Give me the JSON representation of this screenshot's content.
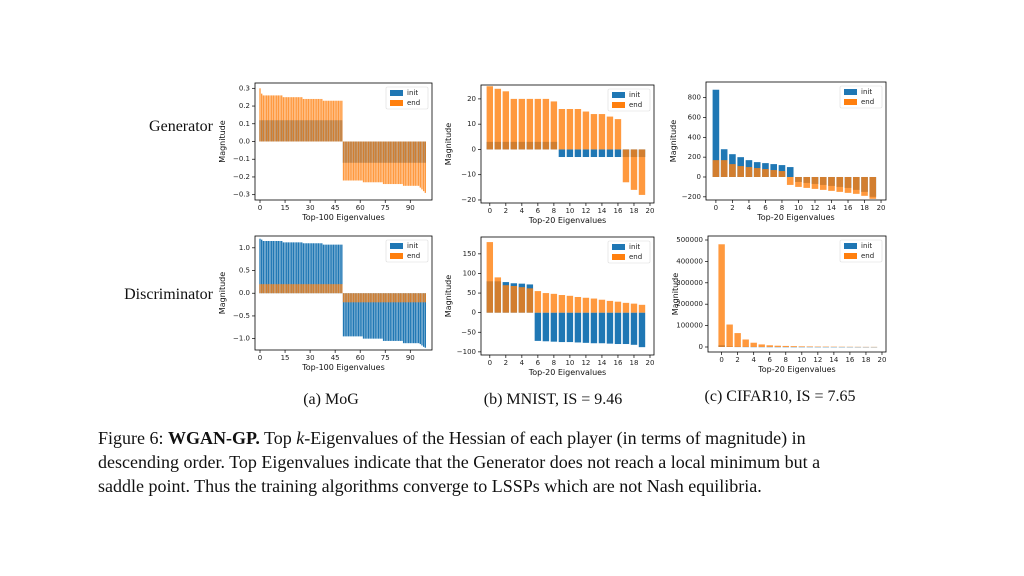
{
  "rows": [
    "Generator",
    "Discriminator"
  ],
  "subcaptions": [
    "(a) MoG",
    "(b) MNIST, IS = 9.46",
    "(c) CIFAR10, IS = 7.65"
  ],
  "caption": [
    [
      {
        "text": "Figure 6: "
      },
      {
        "text": "WGAN-GP.",
        "style": "bold"
      },
      {
        "text": " Top "
      },
      {
        "text": "k",
        "style": "italic"
      },
      {
        "text": "-Eigenvalues of the Hessian of each player (in terms of magnitude) in"
      }
    ],
    [
      {
        "text": "descending order. Top Eigenvalues indicate that the Generator does not reach a local minimum but a"
      }
    ],
    [
      {
        "text": "saddle point. Thus the training algorithms converge to LSSPs which are not Nash equilibria."
      }
    ]
  ],
  "chart_data": [
    {
      "type": "bar",
      "xlabel": "Top-100 Eigenvalues",
      "ylabel": "Magnitude",
      "legend": "upper right",
      "x": [
        0,
        1,
        2,
        3,
        4,
        5,
        6,
        7,
        8,
        9,
        10,
        11,
        12,
        13,
        14,
        15,
        16,
        17,
        18,
        19,
        20,
        21,
        22,
        23,
        24,
        25,
        26,
        27,
        28,
        29,
        30,
        31,
        32,
        33,
        34,
        35,
        36,
        37,
        38,
        39,
        40,
        41,
        42,
        43,
        44,
        45,
        46,
        47,
        48,
        49,
        50,
        51,
        52,
        53,
        54,
        55,
        56,
        57,
        58,
        59,
        60,
        61,
        62,
        63,
        64,
        65,
        66,
        67,
        68,
        69,
        70,
        71,
        72,
        73,
        74,
        75,
        76,
        77,
        78,
        79,
        80,
        81,
        82,
        83,
        84,
        85,
        86,
        87,
        88,
        89,
        90,
        91,
        92,
        93,
        94,
        95,
        96,
        97,
        98,
        99
      ],
      "series": [
        {
          "name": "init",
          "color": "#1f77b4",
          "values": [
            0.12,
            0.12,
            0.12,
            0.12,
            0.12,
            0.12,
            0.12,
            0.12,
            0.12,
            0.12,
            0.12,
            0.12,
            0.12,
            0.12,
            0.12,
            0.12,
            0.12,
            0.12,
            0.12,
            0.12,
            0.12,
            0.12,
            0.12,
            0.12,
            0.12,
            0.12,
            0.12,
            0.12,
            0.12,
            0.12,
            0.12,
            0.12,
            0.12,
            0.12,
            0.12,
            0.12,
            0.12,
            0.12,
            0.12,
            0.12,
            0.12,
            0.12,
            0.12,
            0.12,
            0.12,
            0.12,
            0.12,
            0.12,
            0.12,
            0.12,
            -0.12,
            -0.12,
            -0.12,
            -0.12,
            -0.12,
            -0.12,
            -0.12,
            -0.12,
            -0.12,
            -0.12,
            -0.12,
            -0.12,
            -0.12,
            -0.12,
            -0.12,
            -0.12,
            -0.12,
            -0.12,
            -0.12,
            -0.12,
            -0.12,
            -0.12,
            -0.12,
            -0.12,
            -0.12,
            -0.12,
            -0.12,
            -0.12,
            -0.12,
            -0.12,
            -0.12,
            -0.12,
            -0.12,
            -0.12,
            -0.12,
            -0.12,
            -0.12,
            -0.12,
            -0.12,
            -0.12,
            -0.12,
            -0.12,
            -0.12,
            -0.12,
            -0.12,
            -0.12,
            -0.12,
            -0.12,
            -0.12,
            -0.12
          ]
        },
        {
          "name": "end",
          "color": "#ff7f0e",
          "values": [
            0.3,
            0.27,
            0.26,
            0.26,
            0.26,
            0.26,
            0.26,
            0.26,
            0.26,
            0.26,
            0.26,
            0.26,
            0.26,
            0.26,
            0.25,
            0.25,
            0.25,
            0.25,
            0.25,
            0.25,
            0.25,
            0.25,
            0.25,
            0.25,
            0.25,
            0.25,
            0.24,
            0.24,
            0.24,
            0.24,
            0.24,
            0.24,
            0.24,
            0.24,
            0.24,
            0.24,
            0.24,
            0.24,
            0.23,
            0.23,
            0.23,
            0.23,
            0.23,
            0.23,
            0.23,
            0.23,
            0.23,
            0.23,
            0.23,
            0.23,
            -0.22,
            -0.22,
            -0.22,
            -0.22,
            -0.22,
            -0.22,
            -0.22,
            -0.22,
            -0.22,
            -0.22,
            -0.22,
            -0.22,
            -0.23,
            -0.23,
            -0.23,
            -0.23,
            -0.23,
            -0.23,
            -0.23,
            -0.23,
            -0.23,
            -0.23,
            -0.23,
            -0.23,
            -0.24,
            -0.24,
            -0.24,
            -0.24,
            -0.24,
            -0.24,
            -0.24,
            -0.24,
            -0.24,
            -0.24,
            -0.24,
            -0.24,
            -0.25,
            -0.25,
            -0.25,
            -0.25,
            -0.25,
            -0.25,
            -0.25,
            -0.25,
            -0.25,
            -0.25,
            -0.26,
            -0.27,
            -0.28,
            -0.29
          ]
        }
      ],
      "xlim": [
        -3,
        103
      ],
      "xticks": [
        0,
        15,
        30,
        45,
        60,
        75,
        90
      ],
      "ylim": [
        -0.33,
        0.33
      ],
      "yticks": [
        {
          "value": -0.3,
          "label": "−0.3"
        },
        {
          "value": -0.2,
          "label": "−0.2"
        },
        {
          "value": -0.1,
          "label": "−0.1"
        },
        {
          "value": 0,
          "label": "0.0"
        },
        0.1,
        0.2,
        0.3
      ]
    },
    {
      "type": "bar",
      "xlabel": "Top-20 Eigenvalues",
      "ylabel": "Magnitude",
      "legend": "upper right",
      "x": [
        0,
        1,
        2,
        3,
        4,
        5,
        6,
        7,
        8,
        9,
        10,
        11,
        12,
        13,
        14,
        15,
        16,
        17,
        18,
        19
      ],
      "series": [
        {
          "name": "init",
          "color": "#1f77b4",
          "values": [
            3,
            3,
            3,
            3,
            3,
            3,
            3,
            3,
            3,
            -3,
            -3,
            -3,
            -3,
            -3,
            -3,
            -3,
            -3,
            -3,
            -3,
            -3
          ]
        },
        {
          "name": "end",
          "color": "#ff7f0e",
          "values": [
            25,
            24,
            23,
            20,
            20,
            20,
            20,
            20,
            19,
            16,
            16,
            16,
            15,
            14,
            14,
            13,
            12,
            -13,
            -16,
            -18
          ]
        }
      ],
      "xlim": [
        -1.1,
        20.5
      ],
      "xticks": [
        0,
        2,
        4,
        6,
        8,
        10,
        12,
        14,
        16,
        18,
        20
      ],
      "ylim": [
        -21.2,
        25.5
      ],
      "yticks": [
        {
          "value": -20,
          "label": "−20"
        },
        {
          "value": -10,
          "label": "−10"
        },
        0,
        10,
        20
      ]
    },
    {
      "type": "bar",
      "xlabel": "Top-20 Eigenvalues",
      "ylabel": "Magnitude",
      "legend": "upper right",
      "x": [
        0,
        1,
        2,
        3,
        4,
        5,
        6,
        7,
        8,
        9,
        10,
        11,
        12,
        13,
        14,
        15,
        16,
        17,
        18,
        19
      ],
      "series": [
        {
          "name": "init",
          "color": "#1f77b4",
          "values": [
            880,
            280,
            230,
            200,
            170,
            150,
            140,
            130,
            120,
            100,
            -50,
            -60,
            -70,
            -80,
            -90,
            -100,
            -110,
            -130,
            -150,
            -200
          ]
        },
        {
          "name": "end",
          "color": "#ff7f0e",
          "values": [
            170,
            170,
            130,
            110,
            100,
            90,
            80,
            70,
            60,
            -80,
            -100,
            -110,
            -120,
            -130,
            -140,
            -150,
            -160,
            -170,
            -190,
            -220
          ]
        }
      ],
      "xlim": [
        -1.2,
        20.6
      ],
      "xticks": [
        0,
        2,
        4,
        6,
        8,
        10,
        12,
        14,
        16,
        18,
        20
      ],
      "ylim": [
        -232,
        958
      ],
      "yticks": [
        {
          "value": -200,
          "label": "−200"
        },
        0,
        200,
        400,
        600,
        800
      ]
    },
    {
      "type": "bar",
      "xlabel": "Top-100 Eigenvalues",
      "ylabel": "Magnitude",
      "legend": "upper right",
      "x": [
        0,
        1,
        2,
        3,
        4,
        5,
        6,
        7,
        8,
        9,
        10,
        11,
        12,
        13,
        14,
        15,
        16,
        17,
        18,
        19,
        20,
        21,
        22,
        23,
        24,
        25,
        26,
        27,
        28,
        29,
        30,
        31,
        32,
        33,
        34,
        35,
        36,
        37,
        38,
        39,
        40,
        41,
        42,
        43,
        44,
        45,
        46,
        47,
        48,
        49,
        50,
        51,
        52,
        53,
        54,
        55,
        56,
        57,
        58,
        59,
        60,
        61,
        62,
        63,
        64,
        65,
        66,
        67,
        68,
        69,
        70,
        71,
        72,
        73,
        74,
        75,
        76,
        77,
        78,
        79,
        80,
        81,
        82,
        83,
        84,
        85,
        86,
        87,
        88,
        89,
        90,
        91,
        92,
        93,
        94,
        95,
        96,
        97,
        98,
        99
      ],
      "series": [
        {
          "name": "init",
          "color": "#1f77b4",
          "values": [
            1.2,
            1.18,
            1.15,
            1.15,
            1.15,
            1.15,
            1.15,
            1.15,
            1.15,
            1.15,
            1.15,
            1.15,
            1.15,
            1.15,
            1.12,
            1.12,
            1.12,
            1.12,
            1.12,
            1.12,
            1.12,
            1.12,
            1.12,
            1.12,
            1.12,
            1.12,
            1.1,
            1.1,
            1.1,
            1.1,
            1.1,
            1.1,
            1.1,
            1.1,
            1.1,
            1.1,
            1.1,
            1.1,
            1.07,
            1.07,
            1.07,
            1.07,
            1.07,
            1.07,
            1.07,
            1.07,
            1.07,
            1.07,
            1.07,
            1.07,
            -0.95,
            -0.95,
            -0.95,
            -0.95,
            -0.95,
            -0.95,
            -0.95,
            -0.95,
            -0.95,
            -0.95,
            -0.95,
            -0.95,
            -1.0,
            -1.0,
            -1.0,
            -1.0,
            -1.0,
            -1.0,
            -1.0,
            -1.0,
            -1.0,
            -1.0,
            -1.0,
            -1.0,
            -1.05,
            -1.05,
            -1.05,
            -1.05,
            -1.05,
            -1.05,
            -1.05,
            -1.05,
            -1.05,
            -1.05,
            -1.05,
            -1.05,
            -1.1,
            -1.1,
            -1.1,
            -1.1,
            -1.1,
            -1.1,
            -1.1,
            -1.1,
            -1.1,
            -1.1,
            -1.12,
            -1.15,
            -1.18,
            -1.2
          ]
        },
        {
          "name": "end",
          "color": "#ff7f0e",
          "values": [
            0.2,
            0.2,
            0.2,
            0.2,
            0.2,
            0.2,
            0.2,
            0.2,
            0.2,
            0.2,
            0.2,
            0.2,
            0.2,
            0.2,
            0.2,
            0.2,
            0.2,
            0.2,
            0.2,
            0.2,
            0.2,
            0.2,
            0.2,
            0.2,
            0.2,
            0.2,
            0.2,
            0.2,
            0.2,
            0.2,
            0.2,
            0.2,
            0.2,
            0.2,
            0.2,
            0.2,
            0.2,
            0.2,
            0.2,
            0.2,
            0.2,
            0.2,
            0.2,
            0.2,
            0.2,
            0.2,
            0.2,
            0.2,
            0.2,
            0.2,
            -0.2,
            -0.2,
            -0.2,
            -0.2,
            -0.2,
            -0.2,
            -0.2,
            -0.2,
            -0.2,
            -0.2,
            -0.2,
            -0.2,
            -0.2,
            -0.2,
            -0.2,
            -0.2,
            -0.2,
            -0.2,
            -0.2,
            -0.2,
            -0.2,
            -0.2,
            -0.2,
            -0.2,
            -0.2,
            -0.2,
            -0.2,
            -0.2,
            -0.2,
            -0.2,
            -0.2,
            -0.2,
            -0.2,
            -0.2,
            -0.2,
            -0.2,
            -0.2,
            -0.2,
            -0.2,
            -0.2,
            -0.2,
            -0.2,
            -0.2,
            -0.2,
            -0.2,
            -0.2,
            -0.2,
            -0.2,
            -0.2,
            -0.2
          ]
        }
      ],
      "xlim": [
        -3,
        103
      ],
      "xticks": [
        0,
        15,
        30,
        45,
        60,
        75,
        90
      ],
      "ylim": [
        -1.25,
        1.26
      ],
      "yticks": [
        {
          "value": -1,
          "label": "−1.0"
        },
        {
          "value": -0.5,
          "label": "−0.5"
        },
        {
          "value": 0,
          "label": "0.0"
        },
        0.5,
        {
          "value": 1,
          "label": "1.0"
        }
      ]
    },
    {
      "type": "bar",
      "xlabel": "Top-20 Eigenvalues",
      "ylabel": "Magnitude",
      "legend": "upper right",
      "x": [
        0,
        1,
        2,
        3,
        4,
        5,
        6,
        7,
        8,
        9,
        10,
        11,
        12,
        13,
        14,
        15,
        16,
        17,
        18,
        19
      ],
      "series": [
        {
          "name": "init",
          "color": "#1f77b4",
          "values": [
            80,
            80,
            78,
            75,
            74,
            72,
            -72,
            -73,
            -74,
            -75,
            -75,
            -76,
            -77,
            -78,
            -78,
            -79,
            -80,
            -80,
            -82,
            -88
          ]
        },
        {
          "name": "end",
          "color": "#ff7f0e",
          "values": [
            180,
            90,
            70,
            68,
            65,
            62,
            55,
            50,
            48,
            45,
            43,
            40,
            38,
            36,
            33,
            30,
            28,
            25,
            23,
            20
          ]
        }
      ],
      "xlim": [
        -1.1,
        20.5
      ],
      "xticks": [
        0,
        2,
        4,
        6,
        8,
        10,
        12,
        14,
        16,
        18,
        20
      ],
      "ylim": [
        -108,
        193
      ],
      "yticks": [
        {
          "value": -100,
          "label": "−100"
        },
        {
          "value": -50,
          "label": "−50"
        },
        0,
        50,
        100,
        150
      ]
    },
    {
      "type": "bar",
      "xlabel": "Top-20 Eigenvalues",
      "ylabel": "Magnitude",
      "legend": "upper right",
      "x": [
        0,
        1,
        2,
        3,
        4,
        5,
        6,
        7,
        8,
        9,
        10,
        11,
        12,
        13,
        14,
        15,
        16,
        17,
        18,
        19
      ],
      "series": [
        {
          "name": "init",
          "color": "#1f77b4",
          "values": [
            8000,
            2000,
            1000,
            800,
            600,
            500,
            400,
            300,
            300,
            200,
            200,
            200,
            100,
            100,
            100,
            100,
            100,
            100,
            100,
            100
          ]
        },
        {
          "name": "end",
          "color": "#ff7f0e",
          "values": [
            480000,
            105000,
            65000,
            35000,
            20000,
            12000,
            8000,
            6000,
            5000,
            4000,
            3000,
            2500,
            2000,
            1800,
            1500,
            1200,
            1000,
            800,
            600,
            500
          ]
        }
      ],
      "xlim": [
        -1.7,
        20.5
      ],
      "xticks": [
        0,
        2,
        4,
        6,
        8,
        10,
        12,
        14,
        16,
        18,
        20
      ],
      "ylim": [
        -23400,
        518700
      ],
      "yticks": [
        0,
        100000,
        200000,
        300000,
        400000,
        500000
      ]
    }
  ]
}
